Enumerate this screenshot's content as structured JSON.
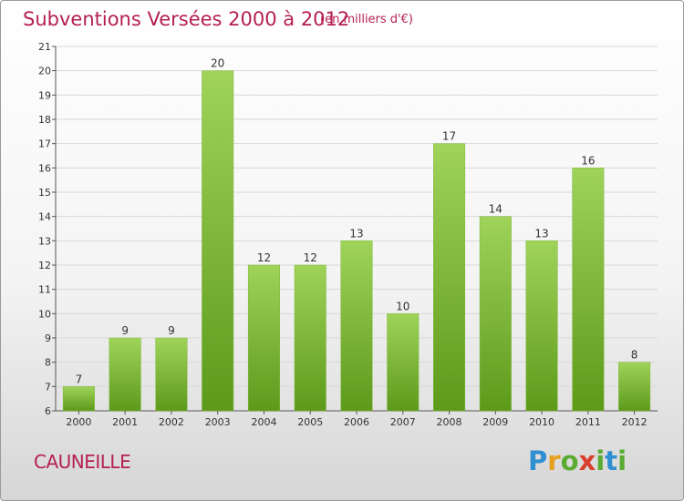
{
  "header": {
    "title": "Subventions Versées 2000 à 2012",
    "subtitle": "(en milliers d'€)"
  },
  "footer": {
    "commune": "CAUNEILLE",
    "logo_letters": [
      "P",
      "r",
      "o",
      "x",
      "i",
      "t",
      "i"
    ]
  },
  "colors": {
    "title": "#b5204f",
    "bar_top": "#9fd35a",
    "bar_bottom": "#5d9a1a",
    "grid": "#d8d8d8"
  },
  "chart_data": {
    "type": "bar",
    "title": "Subventions Versées 2000 à 2012",
    "subtitle": "(en milliers d'€)",
    "categories": [
      "2000",
      "2001",
      "2002",
      "2003",
      "2004",
      "2005",
      "2006",
      "2007",
      "2008",
      "2009",
      "2010",
      "2011",
      "2012"
    ],
    "values": [
      7,
      9,
      9,
      20,
      12,
      12,
      13,
      10,
      17,
      14,
      13,
      16,
      8
    ],
    "yticks": [
      6,
      7,
      8,
      9,
      10,
      11,
      12,
      13,
      14,
      15,
      16,
      17,
      18,
      19,
      20,
      21
    ],
    "ylim": [
      6,
      21
    ],
    "grid": true,
    "xlabel": "",
    "ylabel": ""
  }
}
